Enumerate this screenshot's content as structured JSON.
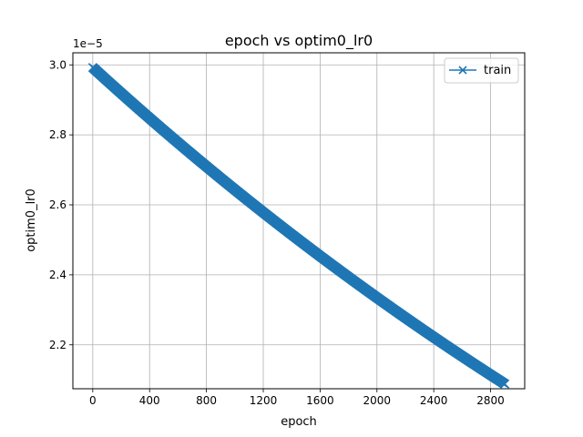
{
  "chart_data": {
    "type": "line",
    "title": "epoch vs optim0_lr0",
    "xlabel": "epoch",
    "ylabel": "optim0_lr0",
    "y_offset_label": "1e−5",
    "xlim": [
      -140,
      3040
    ],
    "ylim": [
      2.0745,
      3.0345
    ],
    "x_ticks": [
      0,
      400,
      800,
      1200,
      1600,
      2000,
      2400,
      2800
    ],
    "y_ticks": [
      2.2,
      2.4,
      2.6,
      2.8,
      3.0
    ],
    "x_tick_labels": [
      "0",
      "400",
      "800",
      "1200",
      "1600",
      "2000",
      "2400",
      "2800"
    ],
    "y_tick_labels": [
      "2.2",
      "2.4",
      "2.6",
      "2.8",
      "3.0"
    ],
    "grid": true,
    "legend_position": "upper-right",
    "series": [
      {
        "name": "train",
        "color": "#1f77b4",
        "marker": "x",
        "x_start": 0,
        "x_end": 2900,
        "y_start": 2.9925,
        "y_end": 2.0882
      }
    ]
  }
}
